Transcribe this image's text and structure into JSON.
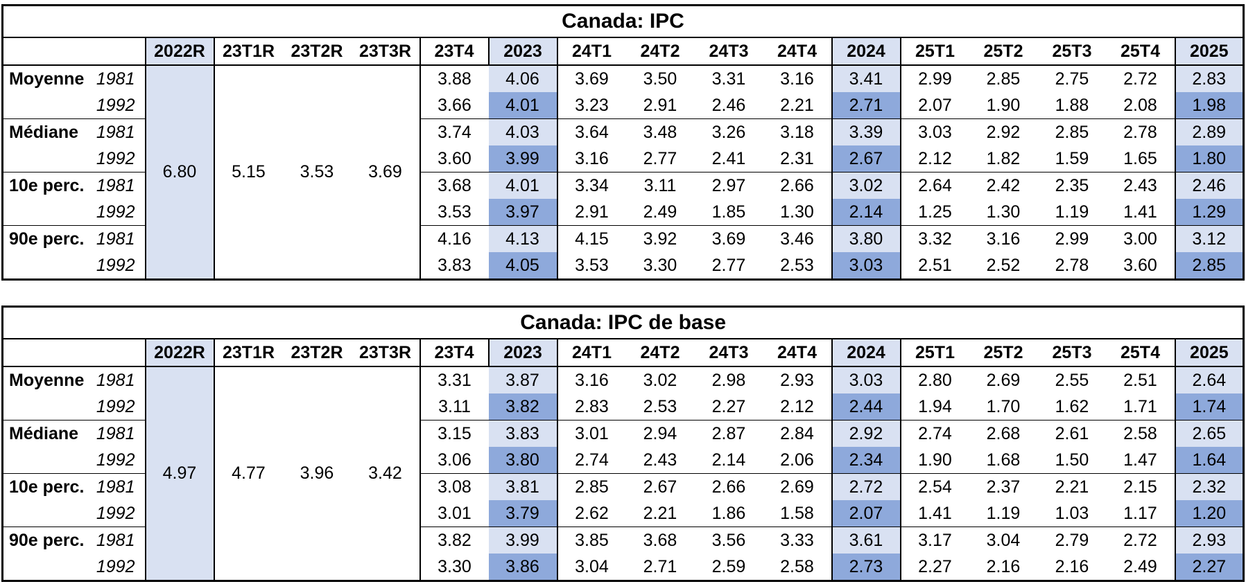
{
  "colors": {
    "highlight_light": "#D9E1F2",
    "highlight_medium": "#8EA9DB",
    "border": "#000000"
  },
  "tables": [
    {
      "title": "Canada: IPC",
      "columns": [
        "2022R",
        "23T1R",
        "23T2R",
        "23T3R",
        "23T4",
        "2023",
        "24T1",
        "24T2",
        "24T3",
        "24T4",
        "2024",
        "25T1",
        "25T2",
        "25T3",
        "25T4",
        "2025"
      ],
      "merged_values": [
        "6.80",
        "5.15",
        "3.53",
        "3.69"
      ],
      "row_groups": [
        {
          "label": "Moyenne",
          "rows": [
            {
              "year": "1981",
              "values": [
                "3.88",
                "4.06",
                "3.69",
                "3.50",
                "3.31",
                "3.16",
                "3.41",
                "2.99",
                "2.85",
                "2.75",
                "2.72",
                "2.83"
              ]
            },
            {
              "year": "1992",
              "values": [
                "3.66",
                "4.01",
                "3.23",
                "2.91",
                "2.46",
                "2.21",
                "2.71",
                "2.07",
                "1.90",
                "1.88",
                "2.08",
                "1.98"
              ]
            }
          ]
        },
        {
          "label": "Médiane",
          "rows": [
            {
              "year": "1981",
              "values": [
                "3.74",
                "4.03",
                "3.64",
                "3.48",
                "3.26",
                "3.18",
                "3.39",
                "3.03",
                "2.92",
                "2.85",
                "2.78",
                "2.89"
              ]
            },
            {
              "year": "1992",
              "values": [
                "3.60",
                "3.99",
                "3.16",
                "2.77",
                "2.41",
                "2.31",
                "2.67",
                "2.12",
                "1.82",
                "1.59",
                "1.65",
                "1.80"
              ]
            }
          ]
        },
        {
          "label": "10e perc.",
          "rows": [
            {
              "year": "1981",
              "values": [
                "3.68",
                "4.01",
                "3.34",
                "3.11",
                "2.97",
                "2.66",
                "3.02",
                "2.64",
                "2.42",
                "2.35",
                "2.43",
                "2.46"
              ]
            },
            {
              "year": "1992",
              "values": [
                "3.53",
                "3.97",
                "2.91",
                "2.49",
                "1.85",
                "1.30",
                "2.14",
                "1.25",
                "1.30",
                "1.19",
                "1.41",
                "1.29"
              ]
            }
          ]
        },
        {
          "label": "90e perc.",
          "rows": [
            {
              "year": "1981",
              "values": [
                "4.16",
                "4.13",
                "4.15",
                "3.92",
                "3.69",
                "3.46",
                "3.80",
                "3.32",
                "3.16",
                "2.99",
                "3.00",
                "3.12"
              ]
            },
            {
              "year": "1992",
              "values": [
                "3.83",
                "4.05",
                "3.53",
                "3.30",
                "2.77",
                "2.53",
                "3.03",
                "2.51",
                "2.52",
                "2.78",
                "3.60",
                "2.85"
              ]
            }
          ]
        }
      ]
    },
    {
      "title": "Canada: IPC de base",
      "columns": [
        "2022R",
        "23T1R",
        "23T2R",
        "23T3R",
        "23T4",
        "2023",
        "24T1",
        "24T2",
        "24T3",
        "24T4",
        "2024",
        "25T1",
        "25T2",
        "25T3",
        "25T4",
        "2025"
      ],
      "merged_values": [
        "4.97",
        "4.77",
        "3.96",
        "3.42"
      ],
      "row_groups": [
        {
          "label": "Moyenne",
          "rows": [
            {
              "year": "1981",
              "values": [
                "3.31",
                "3.87",
                "3.16",
                "3.02",
                "2.98",
                "2.93",
                "3.03",
                "2.80",
                "2.69",
                "2.55",
                "2.51",
                "2.64"
              ]
            },
            {
              "year": "1992",
              "values": [
                "3.11",
                "3.82",
                "2.83",
                "2.53",
                "2.27",
                "2.12",
                "2.44",
                "1.94",
                "1.70",
                "1.62",
                "1.71",
                "1.74"
              ]
            }
          ]
        },
        {
          "label": "Médiane",
          "rows": [
            {
              "year": "1981",
              "values": [
                "3.15",
                "3.83",
                "3.01",
                "2.94",
                "2.87",
                "2.84",
                "2.92",
                "2.74",
                "2.68",
                "2.61",
                "2.58",
                "2.65"
              ]
            },
            {
              "year": "1992",
              "values": [
                "3.06",
                "3.80",
                "2.74",
                "2.43",
                "2.14",
                "2.06",
                "2.34",
                "1.90",
                "1.68",
                "1.50",
                "1.47",
                "1.64"
              ]
            }
          ]
        },
        {
          "label": "10e perc.",
          "rows": [
            {
              "year": "1981",
              "values": [
                "3.08",
                "3.81",
                "2.85",
                "2.67",
                "2.66",
                "2.69",
                "2.72",
                "2.54",
                "2.37",
                "2.21",
                "2.15",
                "2.32"
              ]
            },
            {
              "year": "1992",
              "values": [
                "3.01",
                "3.79",
                "2.62",
                "2.21",
                "1.86",
                "1.58",
                "2.07",
                "1.41",
                "1.19",
                "1.03",
                "1.17",
                "1.20"
              ]
            }
          ]
        },
        {
          "label": "90e perc.",
          "rows": [
            {
              "year": "1981",
              "values": [
                "3.82",
                "3.99",
                "3.85",
                "3.68",
                "3.56",
                "3.33",
                "3.61",
                "3.17",
                "3.04",
                "2.79",
                "2.72",
                "2.93"
              ]
            },
            {
              "year": "1992",
              "values": [
                "3.30",
                "3.86",
                "3.04",
                "2.71",
                "2.59",
                "2.58",
                "2.73",
                "2.27",
                "2.16",
                "2.16",
                "2.49",
                "2.27"
              ]
            }
          ]
        }
      ]
    }
  ]
}
